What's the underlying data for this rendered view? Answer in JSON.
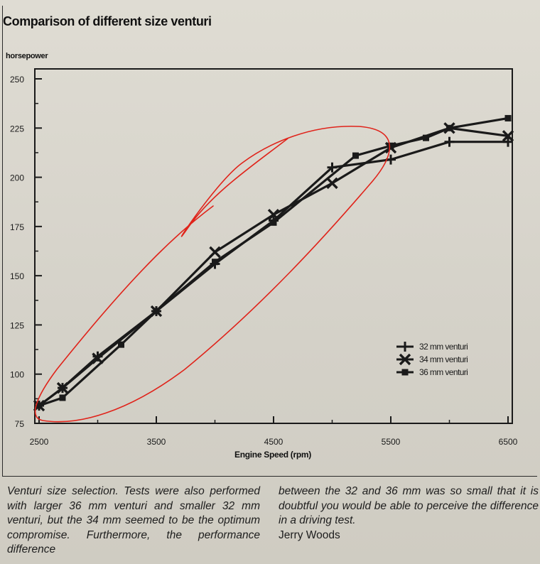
{
  "chart_data": {
    "type": "line",
    "title": "Comparison of different size venturi",
    "xlabel": "Engine Speed (rpm)",
    "ylabel": "horsepower",
    "xlim": [
      2500,
      6500
    ],
    "ylim": [
      75,
      250
    ],
    "x_ticks": [
      "2500",
      "3500",
      "4500",
      "5500",
      "6500"
    ],
    "y_ticks": [
      "75",
      "100",
      "125",
      "150",
      "175",
      "200",
      "225",
      "250"
    ],
    "grid": false,
    "legend_position": "bottom-right",
    "series": [
      {
        "name": "32 mm venturi",
        "marker": "plus",
        "points": [
          [
            2500,
            84
          ],
          [
            2700,
            93
          ],
          [
            3000,
            109
          ],
          [
            3500,
            132
          ],
          [
            4000,
            156
          ],
          [
            4500,
            178
          ],
          [
            5000,
            205
          ],
          [
            5500,
            209
          ],
          [
            6000,
            218
          ],
          [
            6500,
            218
          ]
        ]
      },
      {
        "name": "34 mm venturi",
        "marker": "x",
        "points": [
          [
            2500,
            84
          ],
          [
            2700,
            93
          ],
          [
            3000,
            108
          ],
          [
            3500,
            132
          ],
          [
            4000,
            162
          ],
          [
            4500,
            181
          ],
          [
            5000,
            197
          ],
          [
            5500,
            215
          ],
          [
            6000,
            225
          ],
          [
            6500,
            221
          ]
        ]
      },
      {
        "name": "36 mm venturi",
        "marker": "square",
        "points": [
          [
            2500,
            84
          ],
          [
            2700,
            88
          ],
          [
            3200,
            115
          ],
          [
            3500,
            132
          ],
          [
            4000,
            157
          ],
          [
            4500,
            177
          ],
          [
            5200,
            211
          ],
          [
            5500,
            216
          ],
          [
            5800,
            220
          ],
          [
            6000,
            225
          ],
          [
            6500,
            230
          ]
        ]
      }
    ]
  },
  "caption": {
    "left": "Venturi size selection. Tests were also performed with larger 36 mm venturi and smaller 32 mm venturi, but the 34 mm seemed to be the optimum compromise. Furthermore, the performance difference",
    "right": "between the 32 and 36 mm was so small that it is doubtful you would be able to perceive the difference in a driving test.",
    "author": "Jerry Woods"
  },
  "colors": {
    "ink": "#1a1a1a",
    "annotation": "#e0231a",
    "paper": "#d9d6cd"
  }
}
